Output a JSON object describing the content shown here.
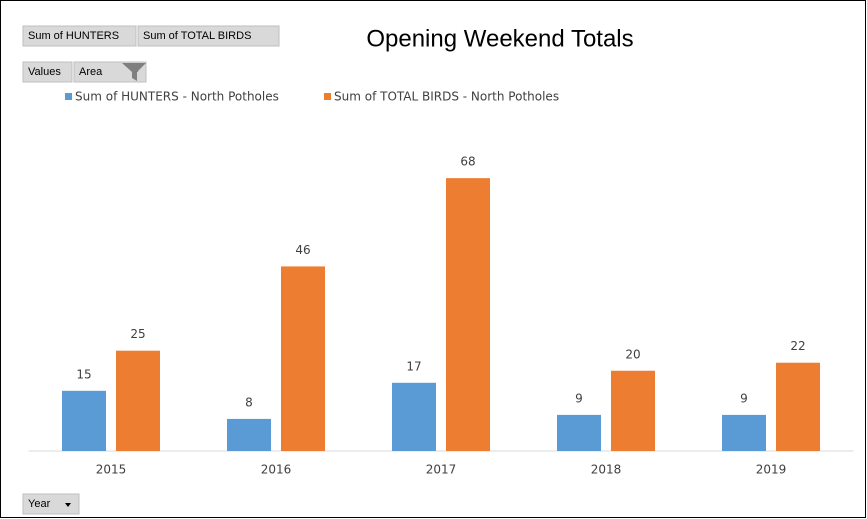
{
  "chart_data": {
    "type": "bar",
    "title": "Opening Weekend Totals",
    "field_buttons": [
      "Sum of HUNTERS",
      "Sum of TOTAL BIRDS"
    ],
    "axis_buttons": [
      "Values",
      "Area"
    ],
    "category_button": "Year",
    "categories": [
      "2015",
      "2016",
      "2017",
      "2018",
      "2019"
    ],
    "series": [
      {
        "name": "Sum of HUNTERS - North Potholes",
        "color": "#5b9bd5",
        "values": [
          15,
          8,
          17,
          9,
          9
        ]
      },
      {
        "name": "Sum of TOTAL BIRDS - North Potholes",
        "color": "#ed7d31",
        "values": [
          25,
          46,
          68,
          20,
          22
        ]
      }
    ],
    "ylim": [
      0,
      80
    ],
    "legend": "top"
  }
}
